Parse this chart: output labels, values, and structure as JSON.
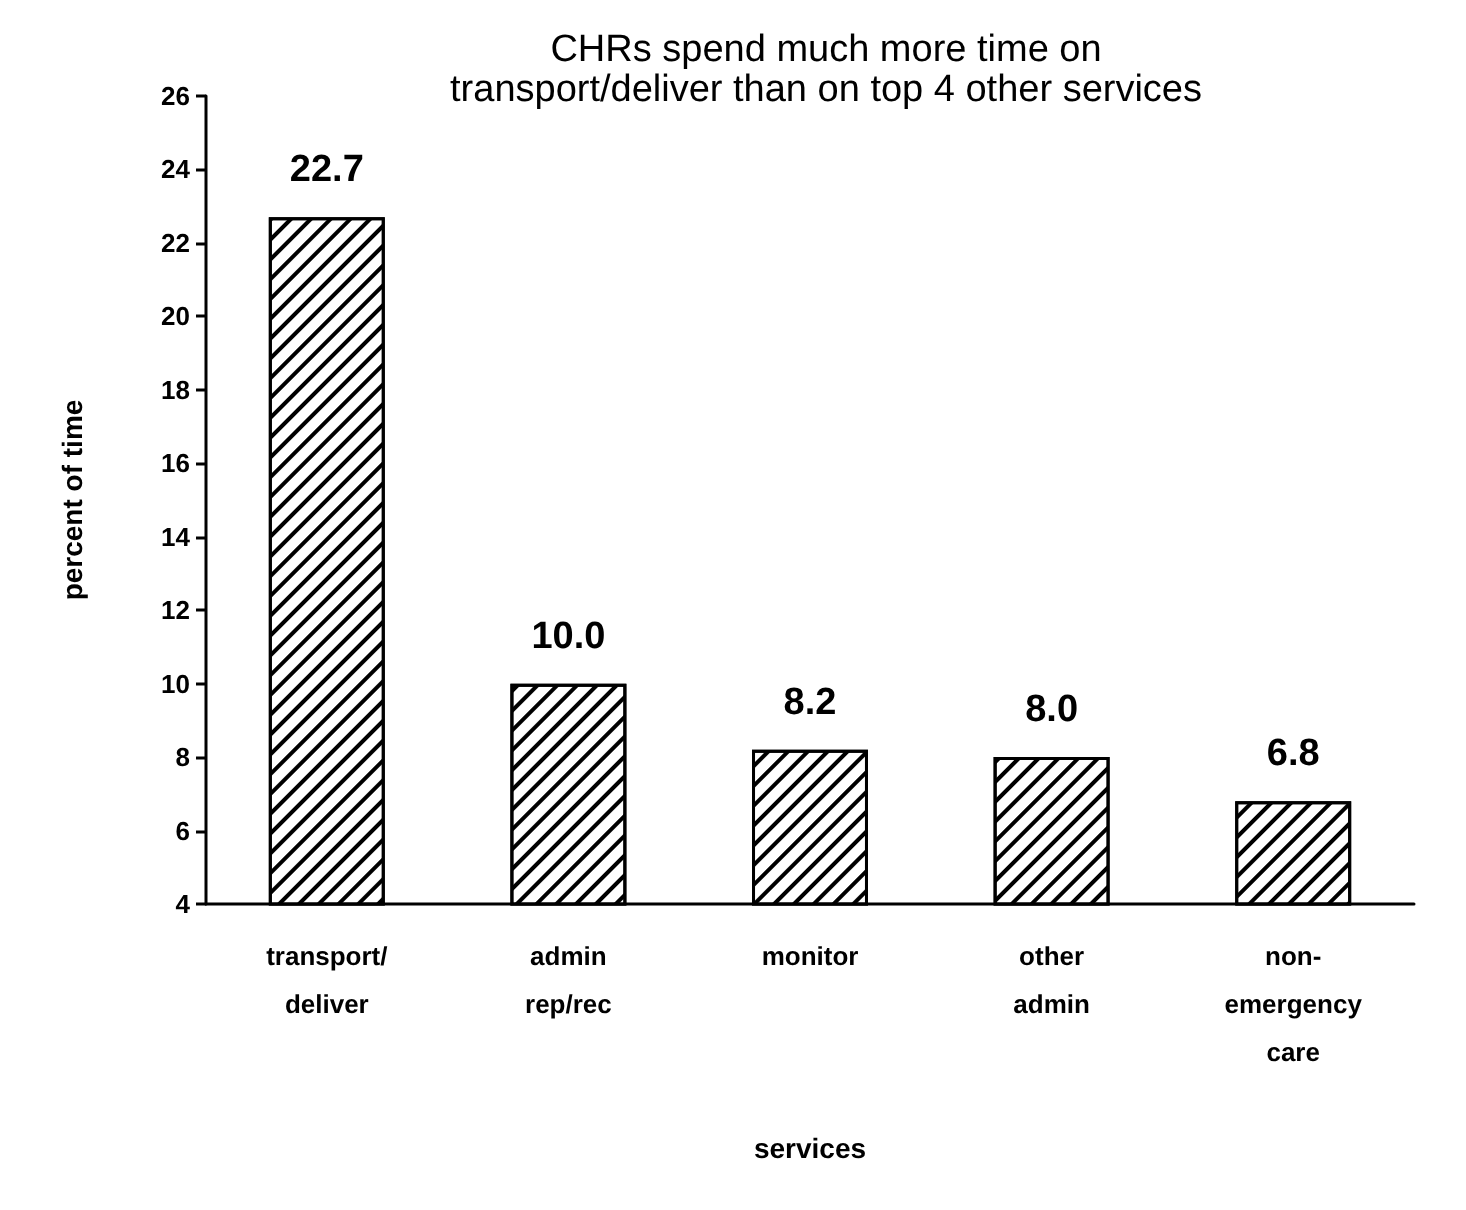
{
  "chart_data": {
    "type": "bar",
    "title": "CHRs spend much more time on\ntransport/deliver than on top 4 other services",
    "xlabel": "services",
    "ylabel": "percent of time",
    "categories": [
      "transport/\ndeliver",
      "admin\nrep/rec",
      "monitor",
      "other\nadmin",
      "non-\nemergency\ncare"
    ],
    "values": [
      22.7,
      10.0,
      8.2,
      8.0,
      6.8
    ],
    "value_labels": [
      "22.7",
      "10.0",
      "8.2",
      "8.0",
      "6.8"
    ],
    "color": "#000000",
    "ylim": [
      4,
      26
    ],
    "yticks": [
      4,
      6,
      8,
      10,
      12,
      14,
      16,
      18,
      20,
      22,
      24,
      26
    ],
    "grid": false
  }
}
